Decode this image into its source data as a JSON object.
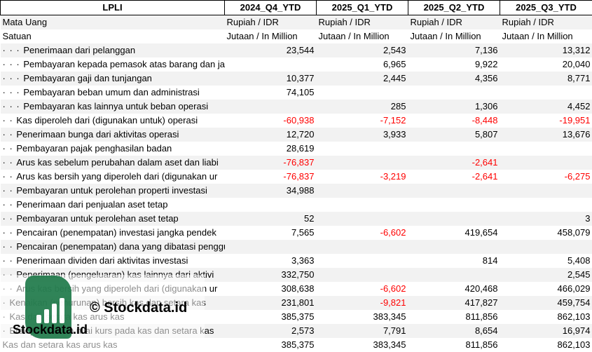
{
  "header": {
    "ticker": "LPLI",
    "periods": [
      "2024_Q4_YTD",
      "2025_Q1_YTD",
      "2025_Q2_YTD",
      "2025_Q3_YTD"
    ]
  },
  "meta_rows": [
    {
      "label": "Mata Uang",
      "values": [
        "Rupiah / IDR",
        "Rupiah / IDR",
        "Rupiah / IDR",
        "Rupiah / IDR"
      ]
    },
    {
      "label": "Satuan",
      "values": [
        "Jutaan / In Million",
        "Jutaan / In Million",
        "Jutaan / In Million",
        "Jutaan / In Million"
      ]
    }
  ],
  "rows": [
    {
      "indent": "· · · ",
      "label": "Penerimaan dari pelanggan",
      "values": [
        "23,544",
        "2,543",
        "7,136",
        "13,312"
      ]
    },
    {
      "indent": "· · · ",
      "label": "Pembayaran kepada pemasok atas barang dan jasa",
      "values": [
        "",
        "6,965",
        "9,922",
        "20,040"
      ]
    },
    {
      "indent": "· · · ",
      "label": "Pembayaran gaji dan tunjangan",
      "values": [
        "10,377",
        "2,445",
        "4,356",
        "8,771"
      ]
    },
    {
      "indent": "· · · ",
      "label": "Pembayaran beban umum dan administrasi",
      "values": [
        "74,105",
        "",
        "",
        ""
      ]
    },
    {
      "indent": "· · · ",
      "label": "Pembayaran kas lainnya untuk beban operasi",
      "values": [
        "",
        "285",
        "1,306",
        "4,452"
      ]
    },
    {
      "indent": "· · ",
      "label": "Kas diperoleh dari (digunakan untuk) operasi",
      "values": [
        "-60,938",
        "-7,152",
        "-8,448",
        "-19,951"
      ]
    },
    {
      "indent": "· · ",
      "label": "Penerimaan bunga dari aktivitas operasi",
      "values": [
        "12,720",
        "3,933",
        "5,807",
        "13,676"
      ]
    },
    {
      "indent": "· · ",
      "label": "Pembayaran pajak penghasilan badan",
      "values": [
        "28,619",
        "",
        "",
        ""
      ]
    },
    {
      "indent": "· · ",
      "label": "Arus kas sebelum perubahan dalam aset dan liabi",
      "values": [
        "-76,837",
        "",
        "-2,641",
        ""
      ]
    },
    {
      "indent": "· · ",
      "label": "Arus kas bersih yang diperoleh dari (digunakan ur",
      "values": [
        "-76,837",
        "-3,219",
        "-2,641",
        "-6,275"
      ]
    },
    {
      "indent": "· · ",
      "label": "Pembayaran untuk perolehan properti investasi",
      "values": [
        "34,988",
        "",
        "",
        ""
      ]
    },
    {
      "indent": "· · ",
      "label": "Penerimaan dari penjualan aset tetap",
      "values": [
        "",
        "",
        "",
        ""
      ]
    },
    {
      "indent": "· · ",
      "label": "Pembayaran untuk perolehan aset tetap",
      "values": [
        "52",
        "",
        "",
        "3"
      ]
    },
    {
      "indent": "· · ",
      "label": "Pencairan (penempatan) investasi jangka pendek",
      "values": [
        "7,565",
        "-6,602",
        "419,654",
        "458,079"
      ]
    },
    {
      "indent": "· · ",
      "label": "Pencairan (penempatan) dana yang dibatasi penggunaannya dari aktivitas investasi",
      "values": [
        "",
        "",
        "",
        ""
      ]
    },
    {
      "indent": "· · ",
      "label": "Penerimaan dividen dari aktivitas investasi",
      "values": [
        "3,363",
        "",
        "814",
        "5,408"
      ]
    },
    {
      "indent": "· · ",
      "label": "Penerimaan (pengeluaran) kas lainnya dari aktivi",
      "values": [
        "332,750",
        "",
        "",
        "2,545"
      ]
    },
    {
      "indent": "· · ",
      "label": "Arus kas bersih yang diperoleh dari (digunakan ur",
      "values": [
        "308,638",
        "-6,602",
        "420,468",
        "466,029"
      ]
    },
    {
      "indent": "· ",
      "label": "Kenaikan (penurunan) bersih kas dan setara kas",
      "values": [
        "231,801",
        "-9,821",
        "417,827",
        "459,754"
      ]
    },
    {
      "indent": "· ",
      "label": "Kas dan setara kas arus kas",
      "values": [
        "385,375",
        "383,345",
        "811,856",
        "862,103"
      ]
    },
    {
      "indent": "· ",
      "label": "Efek perubahan nilai kurs pada kas dan setara kas",
      "values": [
        "2,573",
        "7,791",
        "8,654",
        "16,974"
      ]
    },
    {
      "indent": "",
      "label": "Kas dan setara kas arus kas",
      "values": [
        "385,375",
        "383,345",
        "811,856",
        "862,103"
      ]
    }
  ],
  "watermark": {
    "brand": "Stockdata.id",
    "center_text": "© Stockdata.id",
    "logo_color": "#1f7a4a"
  },
  "colors": {
    "negative": "#ff0000",
    "stripe": "#f2f2f2"
  }
}
